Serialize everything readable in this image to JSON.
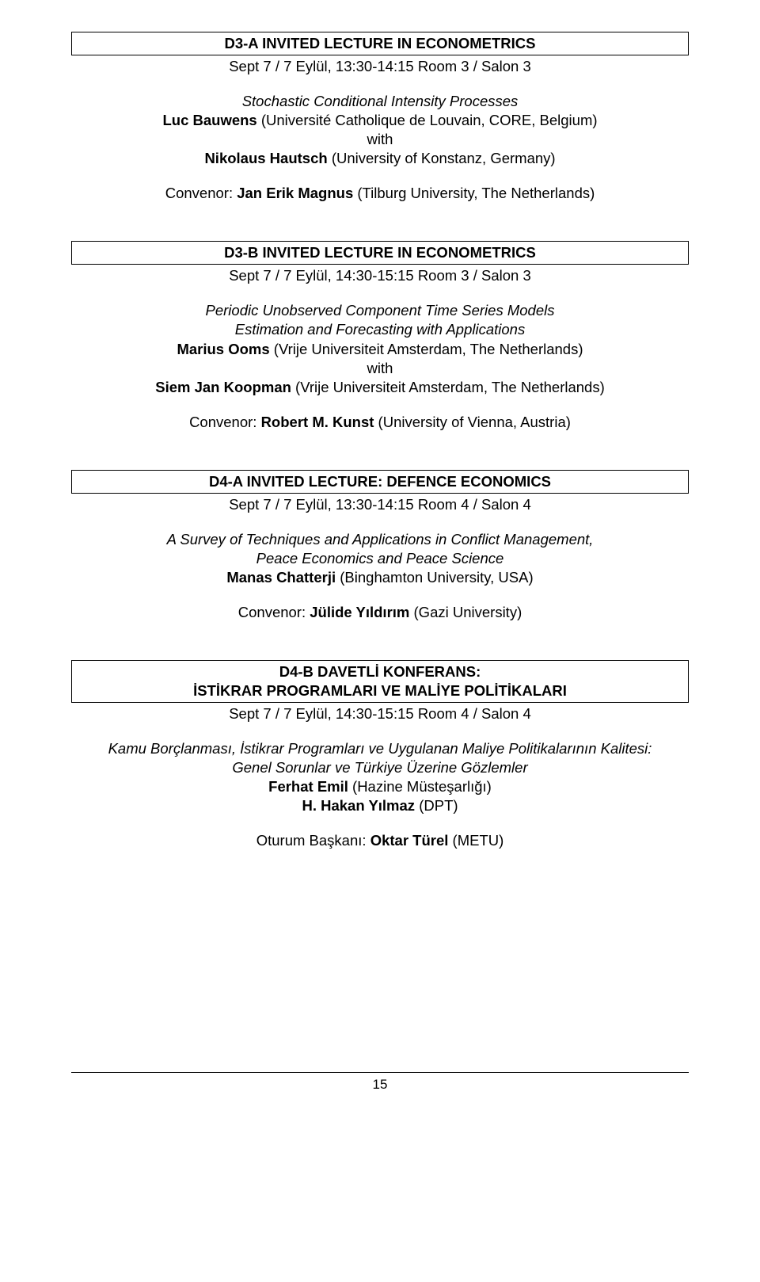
{
  "s1": {
    "header": "D3-A INVITED LECTURE IN ECONOMETRICS",
    "time": "Sept 7 / 7 Eylül, 13:30-14:15 Room 3 / Salon 3",
    "talk_title": "Stochastic Conditional Intensity Processes",
    "author1_name": "Luc Bauwens",
    "author1_aff": " (Université Catholique de Louvain, CORE, Belgium)",
    "with": "with",
    "author2_name": "Nikolaus Hautsch",
    "author2_aff": " (University of Konstanz, Germany)",
    "convenor_label": "Convenor: ",
    "convenor_name": "Jan Erik Magnus",
    "convenor_aff": " (Tilburg University, The Netherlands)"
  },
  "s2": {
    "header": "D3-B INVITED LECTURE IN ECONOMETRICS",
    "time": "Sept 7 / 7 Eylül, 14:30-15:15 Room 3 / Salon 3",
    "talk_title_l1": "Periodic Unobserved Component Time Series Models",
    "talk_title_l2": "Estimation and Forecasting with Applications",
    "author1_name": "Marius Ooms",
    "author1_aff": " (Vrije Universiteit Amsterdam, The Netherlands)",
    "with": "with",
    "author2_name": "Siem Jan Koopman",
    "author2_aff": " (Vrije Universiteit Amsterdam, The Netherlands)",
    "convenor_label": "Convenor: ",
    "convenor_name": "Robert M. Kunst",
    "convenor_aff": " (University of Vienna, Austria)"
  },
  "s3": {
    "header": "D4-A INVITED LECTURE: DEFENCE ECONOMICS",
    "time": "Sept 7 / 7 Eylül, 13:30-14:15 Room 4 / Salon 4",
    "talk_title_l1": "A Survey of Techniques and Applications in Conflict Management,",
    "talk_title_l2": "Peace Economics and Peace Science",
    "author1_name": "Manas Chatterji",
    "author1_aff": " (Binghamton University, USA)",
    "convenor_label": "Convenor: ",
    "convenor_name": "Jülide Yıldırım",
    "convenor_aff": " (Gazi University)"
  },
  "s4": {
    "header_l1": "D4-B DAVETLİ KONFERANS:",
    "header_l2": "İSTİKRAR PROGRAMLARI VE MALİYE POLİTİKALARI",
    "time": "Sept 7 / 7 Eylül, 14:30-15:15 Room 4 / Salon 4",
    "talk_title_l1": "Kamu Borçlanması, İstikrar Programları ve Uygulanan Maliye Politikalarının Kalitesi:",
    "talk_title_l2": "Genel Sorunlar ve Türkiye Üzerine Gözlemler",
    "author1_name": "Ferhat Emil",
    "author1_aff": " (Hazine Müsteşarlığı)",
    "author2_name": "H. Hakan Yılmaz",
    "author2_aff": " (DPT)",
    "convenor_label": "Oturum Başkanı: ",
    "convenor_name": "Oktar Türel",
    "convenor_aff": " (METU)"
  },
  "page_number": "15"
}
